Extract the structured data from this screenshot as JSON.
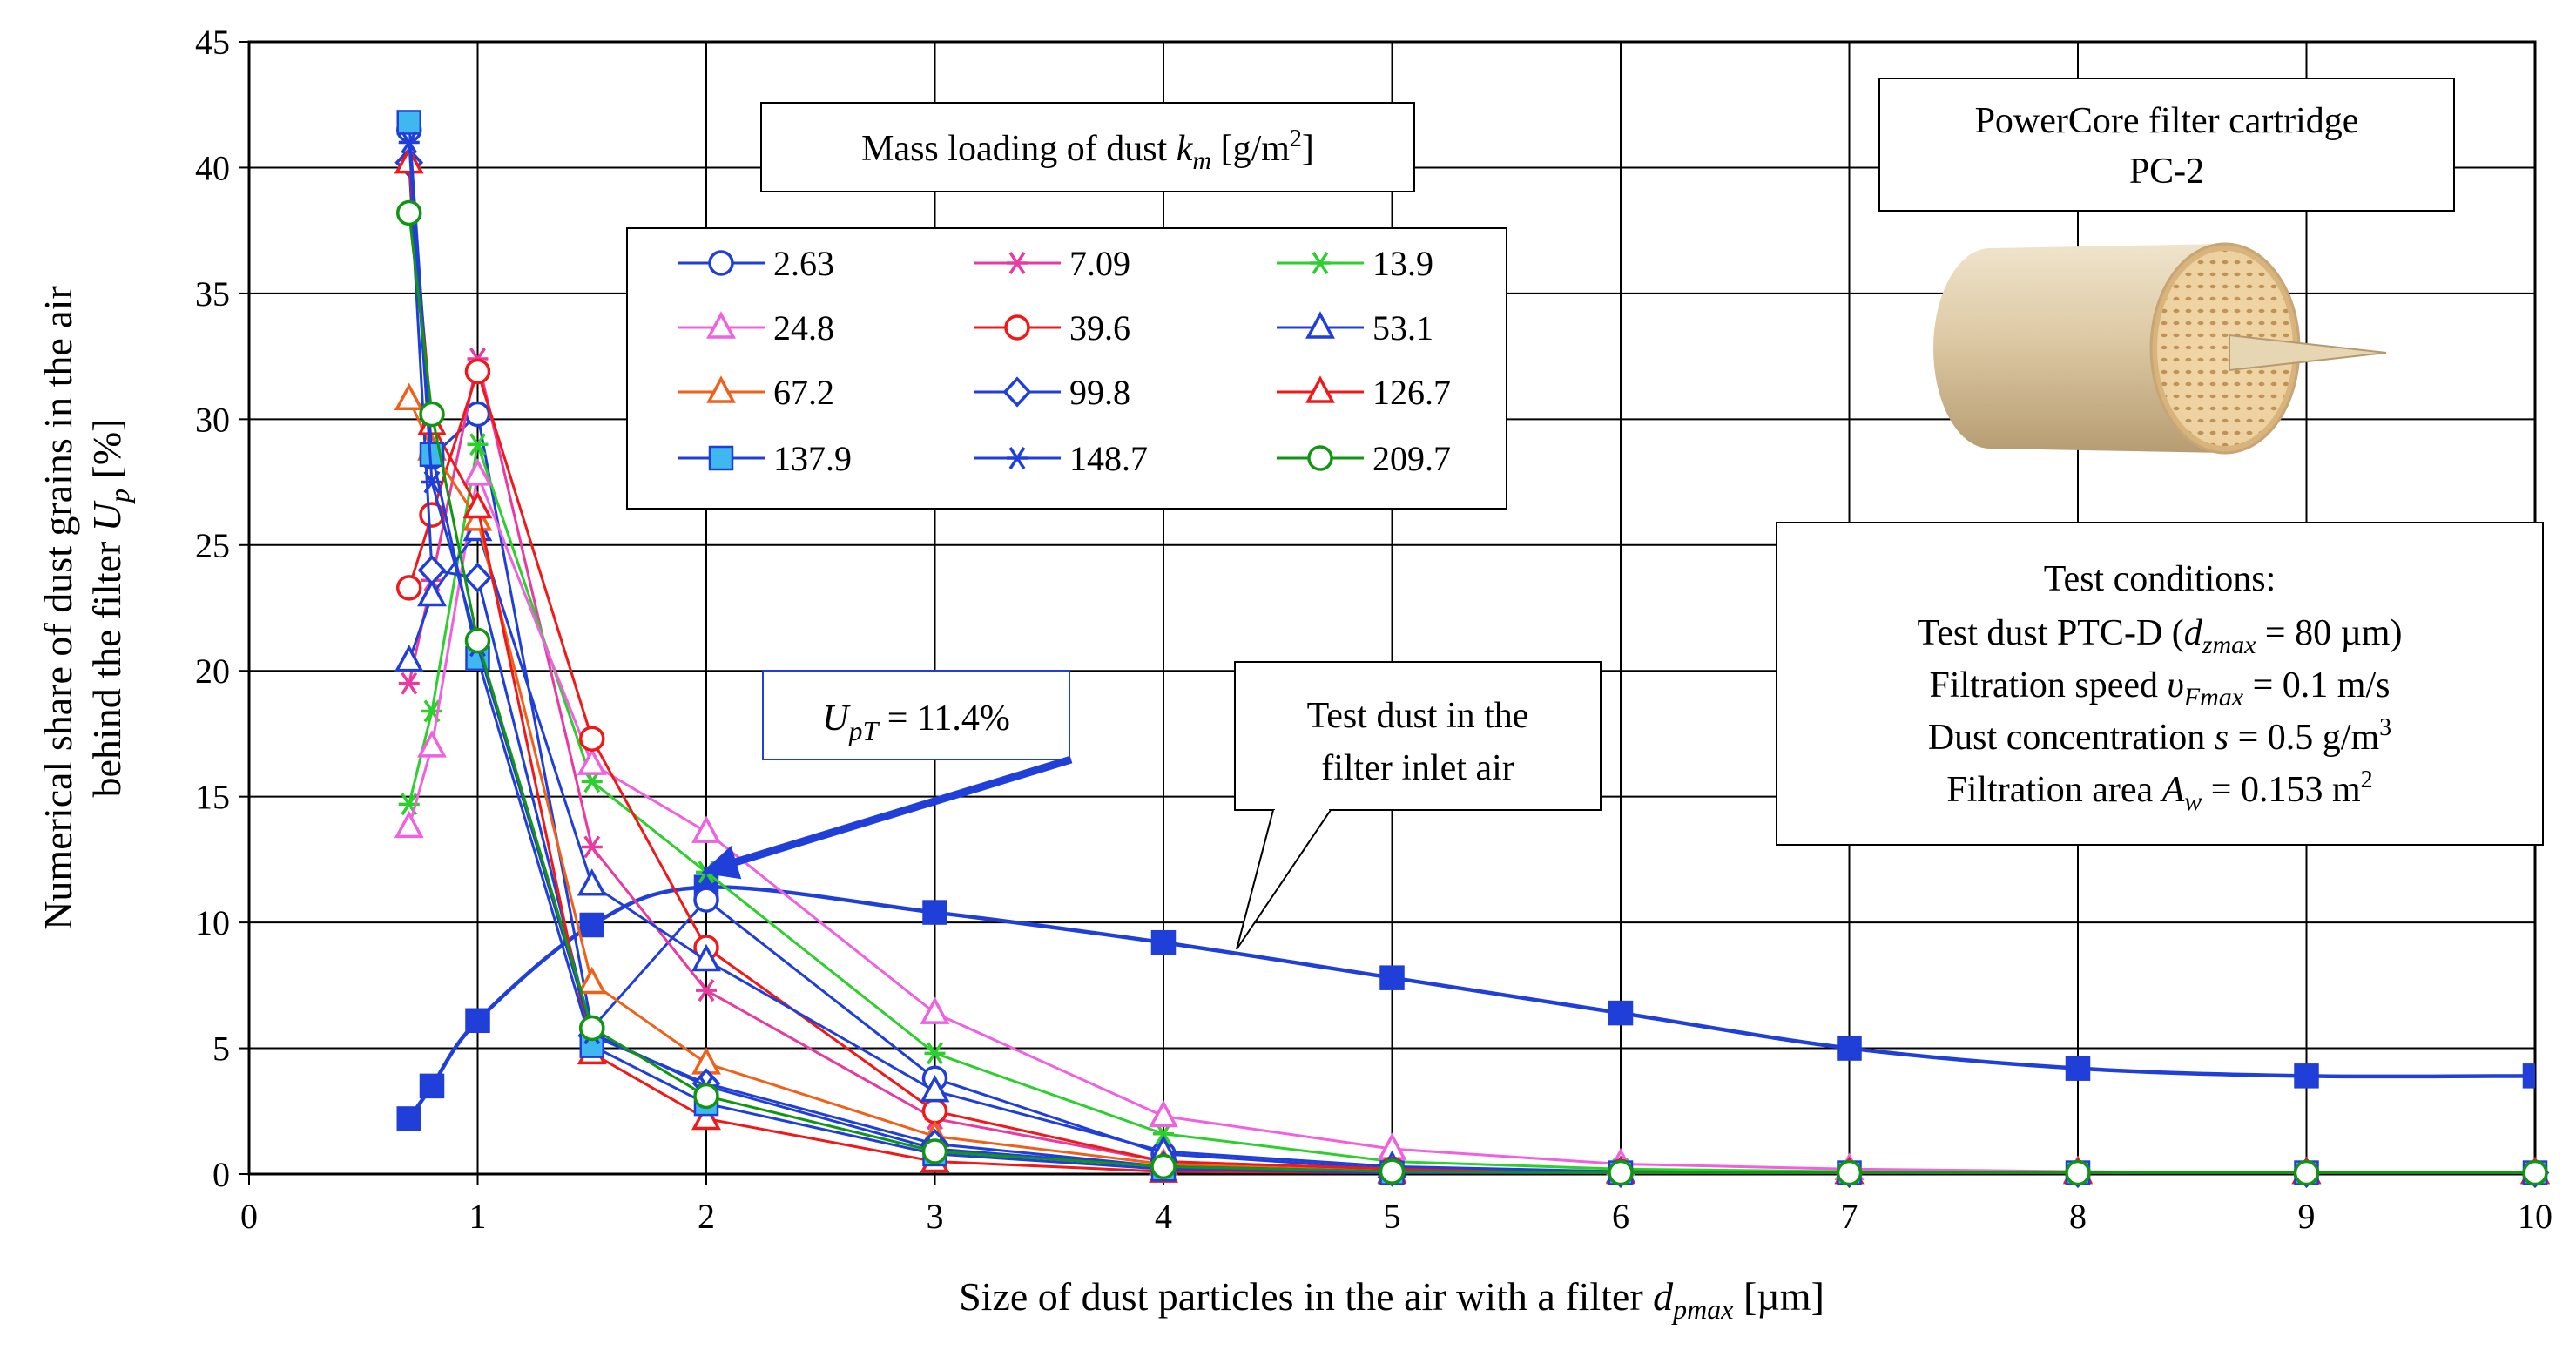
{
  "chart_data": {
    "type": "line",
    "xlabel": {
      "main": "Size of dust particles in the air with a filter ",
      "symbol": "d",
      "sub": "pmax",
      "unit": " [µm]"
    },
    "ylabel": {
      "line1": "Numerical share of dust grains in the air",
      "line2_main": "behind the filter ",
      "symbol": "U",
      "sub": "p",
      "unit": " [%]"
    },
    "xlim": [
      0,
      10
    ],
    "ylim": [
      0,
      45
    ],
    "xticks": [
      "0",
      "1",
      "2",
      "3",
      "4",
      "5",
      "6",
      "7",
      "8",
      "9",
      "10"
    ],
    "yticks": [
      "0",
      "5",
      "10",
      "15",
      "20",
      "25",
      "30",
      "35",
      "40",
      "45"
    ],
    "grid": true,
    "legend_title": {
      "main": "Mass loading of dust ",
      "symbol": "k",
      "sub": "m",
      "unit_pre": " [g/m",
      "unit_sup": "2",
      "unit_post": "]"
    },
    "series": [
      {
        "name": "2.63",
        "color": "#1f3fd8",
        "marker": "circle-open",
        "x": [
          0.7,
          0.8,
          1,
          1.5,
          2,
          3,
          4,
          5,
          6,
          7,
          8,
          9,
          10
        ],
        "values": [
          41.5,
          28.5,
          30.2,
          5.8,
          10.9,
          3.8,
          0.8,
          0.2,
          0.1,
          0.05,
          0.05,
          0.05,
          0.05
        ]
      },
      {
        "name": "7.09",
        "color": "#e83aa0",
        "marker": "star",
        "x": [
          0.7,
          0.8,
          1,
          1.5,
          2,
          3,
          4,
          5,
          6,
          7,
          8,
          9,
          10
        ],
        "values": [
          19.5,
          23.6,
          32.4,
          13.0,
          7.3,
          2.2,
          0.5,
          0.2,
          0.1,
          0.05,
          0.05,
          0.05,
          0.05
        ]
      },
      {
        "name": "13.9",
        "color": "#2ccf2c",
        "marker": "star",
        "x": [
          0.7,
          0.8,
          1,
          1.5,
          2,
          3,
          4,
          5,
          6,
          7,
          8,
          9,
          10
        ],
        "values": [
          14.7,
          18.4,
          29.0,
          15.6,
          12.0,
          4.8,
          1.6,
          0.5,
          0.2,
          0.1,
          0.05,
          0.05,
          0.05
        ]
      },
      {
        "name": "24.8",
        "color": "#f060e0",
        "marker": "triangle-open",
        "x": [
          0.7,
          0.8,
          1,
          1.5,
          2,
          3,
          4,
          5,
          6,
          7,
          8,
          9,
          10
        ],
        "values": [
          13.8,
          17.0,
          27.8,
          16.3,
          13.6,
          6.4,
          2.3,
          1.0,
          0.4,
          0.2,
          0.1,
          0.05,
          0.05
        ]
      },
      {
        "name": "39.6",
        "color": "#f01818",
        "marker": "circle-open",
        "x": [
          0.7,
          0.8,
          1,
          1.5,
          2,
          3,
          4,
          5,
          6,
          7,
          8,
          9,
          10
        ],
        "values": [
          23.3,
          26.2,
          31.9,
          17.3,
          9.0,
          2.5,
          0.5,
          0.2,
          0.1,
          0.05,
          0.05,
          0.05,
          0.05
        ]
      },
      {
        "name": "53.1",
        "color": "#1f3fd8",
        "marker": "triangle-open",
        "x": [
          0.7,
          0.8,
          1,
          1.5,
          2,
          3,
          4,
          5,
          6,
          7,
          8,
          9,
          10
        ],
        "values": [
          20.4,
          23.0,
          25.6,
          11.5,
          8.5,
          3.3,
          0.9,
          0.3,
          0.1,
          0.05,
          0.05,
          0.05,
          0.05
        ]
      },
      {
        "name": "67.2",
        "color": "#f06018",
        "marker": "triangle-open",
        "x": [
          0.7,
          0.8,
          1,
          1.5,
          2,
          3,
          4,
          5,
          6,
          7,
          8,
          9,
          10
        ],
        "values": [
          30.8,
          28.8,
          26.0,
          7.6,
          4.4,
          1.5,
          0.4,
          0.1,
          0.05,
          0.05,
          0.05,
          0.05,
          0.05
        ]
      },
      {
        "name": "99.8",
        "color": "#1f3fd8",
        "marker": "diamond-open",
        "x": [
          0.7,
          0.8,
          1,
          1.5,
          2,
          3,
          4,
          5,
          6,
          7,
          8,
          9,
          10
        ],
        "values": [
          40.2,
          24.0,
          23.7,
          5.5,
          3.6,
          1.2,
          0.3,
          0.1,
          0.05,
          0.05,
          0.05,
          0.05,
          0.05
        ]
      },
      {
        "name": "126.7",
        "color": "#f01818",
        "marker": "triangle-open",
        "x": [
          0.7,
          0.8,
          1,
          1.5,
          2,
          3,
          4,
          5,
          6,
          7,
          8,
          9,
          10
        ],
        "values": [
          40.2,
          29.8,
          26.5,
          4.8,
          2.2,
          0.5,
          0.1,
          0.05,
          0.05,
          0.05,
          0.05,
          0.05,
          0.05
        ]
      },
      {
        "name": "137.9",
        "color": "#1f3fd8",
        "marker": "square-filled",
        "fill": "#3fb8ef",
        "x": [
          0.7,
          0.8,
          1,
          1.5,
          2,
          3,
          4,
          5,
          6,
          7,
          8,
          9,
          10
        ],
        "values": [
          41.8,
          28.6,
          20.5,
          5.1,
          2.8,
          0.8,
          0.2,
          0.05,
          0.05,
          0.05,
          0.05,
          0.05,
          0.05
        ]
      },
      {
        "name": "148.7",
        "color": "#1f3fd8",
        "marker": "star",
        "x": [
          0.7,
          0.8,
          1,
          1.5,
          2,
          3,
          4,
          5,
          6,
          7,
          8,
          9,
          10
        ],
        "values": [
          41.0,
          27.5,
          21.0,
          5.6,
          3.5,
          1.0,
          0.3,
          0.1,
          0.05,
          0.05,
          0.05,
          0.05,
          0.05
        ]
      },
      {
        "name": "209.7",
        "color": "#129612",
        "marker": "circle-open",
        "x": [
          0.7,
          0.8,
          1,
          1.5,
          2,
          3,
          4,
          5,
          6,
          7,
          8,
          9,
          10
        ],
        "values": [
          38.2,
          30.2,
          21.2,
          5.8,
          3.1,
          0.9,
          0.3,
          0.1,
          0.05,
          0.05,
          0.05,
          0.05,
          0.05
        ]
      }
    ],
    "test_dust": {
      "name": "Test dust in the filter inlet air",
      "label_line1": "Test dust in the",
      "label_line2": "filter inlet air",
      "color": "#1f3fd8",
      "marker": "square-filled",
      "x": [
        0.7,
        0.8,
        1,
        1.5,
        2,
        3,
        4,
        5,
        6,
        7,
        8,
        9,
        10
      ],
      "values": [
        2.2,
        3.5,
        6.1,
        9.9,
        11.4,
        10.4,
        9.2,
        7.8,
        6.4,
        5.0,
        4.2,
        3.9,
        3.9
      ]
    },
    "annotation_upt": {
      "symbol": "U",
      "sub": "pT",
      "text": " = 11.4%",
      "x": 2,
      "y": 11.4
    },
    "cartridge_label": {
      "line1": "PowerCore filter cartridge",
      "line2": "PC-2"
    },
    "test_conditions": {
      "heading": "Test conditions:",
      "line1": {
        "pre": "Test dust PTC-D (",
        "symbol": "d",
        "sub": "zmax",
        "post": " = 80 µm)"
      },
      "line2": {
        "pre": "Filtration speed ",
        "symbol": "υ",
        "sub": "Fmax",
        "post": " = 0.1 m/s"
      },
      "line3": {
        "pre": "Dust concentration ",
        "symbol": "s",
        "post": " = 0.5 g/m",
        "sup": "3"
      },
      "line4": {
        "pre": "Filtration area ",
        "symbol": "A",
        "sub": "w",
        "post": " = 0.153 m",
        "sup": "2"
      }
    }
  }
}
